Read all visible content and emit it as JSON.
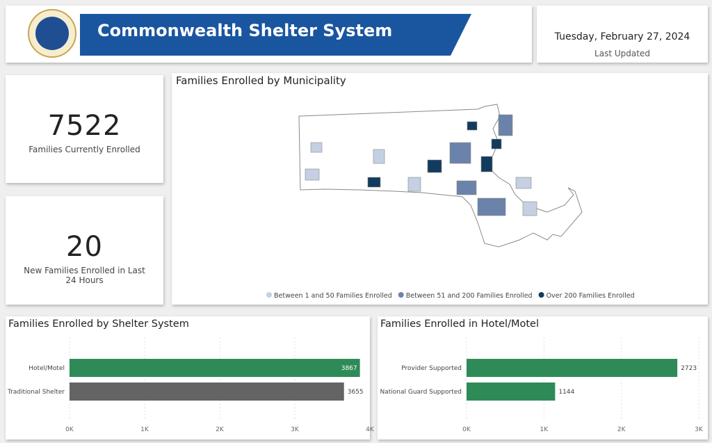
{
  "header": {
    "title": "Commonwealth Shelter System",
    "date": "Tuesday, February 27, 2024",
    "date_caption": "Last Updated"
  },
  "kpis": [
    {
      "value": 7522,
      "label": "Families Currently Enrolled"
    },
    {
      "value": 20,
      "label": "New Families Enrolled in Last 24 Hours"
    }
  ],
  "map": {
    "title": "Families Enrolled by Municipality",
    "legend": [
      {
        "label": "Between 1 and 50 Families Enrolled",
        "color": "#c5d0e3"
      },
      {
        "label": "Between 51 and 200 Families Enrolled",
        "color": "#6b82ab"
      },
      {
        "label": "Over 200 Families Enrolled",
        "color": "#123b5e"
      }
    ]
  },
  "chart_data": [
    {
      "type": "bar",
      "orientation": "horizontal",
      "title": "Families Enrolled by Shelter System",
      "categories": [
        "Hotel/Motel",
        "Traditional Shelter"
      ],
      "values": [
        3867,
        3655
      ],
      "colors": [
        "#2e8b57",
        "#646464"
      ],
      "xlim": [
        0,
        4000
      ],
      "xticks": [
        {
          "value": 0,
          "label": "0K"
        },
        {
          "value": 1000,
          "label": "1K"
        },
        {
          "value": 2000,
          "label": "2K"
        },
        {
          "value": 3000,
          "label": "3K"
        },
        {
          "value": 4000,
          "label": "4K"
        }
      ],
      "grid": true
    },
    {
      "type": "bar",
      "orientation": "horizontal",
      "title": "Families Enrolled in Hotel/Motel",
      "categories": [
        "Provider Supported",
        "National Guard Supported"
      ],
      "values": [
        2723,
        1144
      ],
      "colors": [
        "#2e8b57",
        "#2e8b57"
      ],
      "xlim": [
        0,
        3000
      ],
      "xticks": [
        {
          "value": 0,
          "label": "0K"
        },
        {
          "value": 1000,
          "label": "1K"
        },
        {
          "value": 2000,
          "label": "2K"
        },
        {
          "value": 3000,
          "label": "3K"
        }
      ],
      "grid": true
    }
  ]
}
